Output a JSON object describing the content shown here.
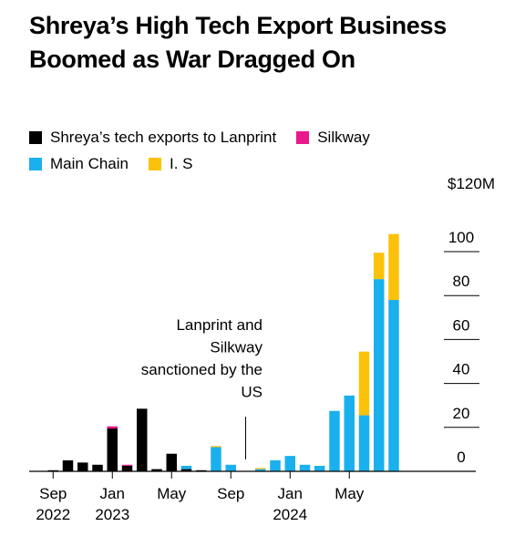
{
  "chart_data": {
    "type": "bar",
    "stacked": true,
    "title": "Shreya’s High Tech Export Business Boomed as War Dragged On",
    "y_unit_top_label": "$120M",
    "ylim": [
      0,
      110
    ],
    "yticks": [
      0,
      20,
      40,
      60,
      80,
      100
    ],
    "ytick_labels": [
      "0",
      "20",
      "40",
      "60",
      "80",
      "100"
    ],
    "y_axis_side": "right",
    "grid": true,
    "legend": {
      "placement": "top-left"
    },
    "xtick_labels": [
      {
        "line1": "Sep",
        "line2": "2022",
        "at_index": 0
      },
      {
        "line1": "Jan",
        "line2": "2023",
        "at_index": 4
      },
      {
        "line1": "May",
        "line2": "",
        "at_index": 8
      },
      {
        "line1": "Sep",
        "line2": "",
        "at_index": 12
      },
      {
        "line1": "Jan",
        "line2": "2024",
        "at_index": 16
      },
      {
        "line1": "May",
        "line2": "",
        "at_index": 20
      }
    ],
    "categories": [
      "Sep 2022",
      "Oct 2022",
      "Nov 2022",
      "Dec 2022",
      "Jan 2023",
      "Feb 2023",
      "Mar 2023",
      "Apr 2023",
      "May 2023",
      "Jun 2023",
      "Jul 2023",
      "Aug 2023",
      "Sep 2023",
      "Oct 2023",
      "Nov 2023",
      "Dec 2023",
      "Jan 2024",
      "Feb 2024",
      "Mar 2024",
      "Apr 2024",
      "May 2024",
      "Jun 2024",
      "Jul 2024",
      "Aug 2024"
    ],
    "series": [
      {
        "name": "Shreya’s tech exports to Lanprint",
        "color": "#000000",
        "values": [
          0.5,
          5,
          4,
          3,
          19.5,
          2.5,
          28.5,
          1,
          8,
          1,
          0.5,
          0,
          0,
          0,
          0,
          0,
          0,
          0,
          0,
          0,
          0,
          0,
          0,
          0
        ]
      },
      {
        "name": "Silkway",
        "color": "#e8198b",
        "values": [
          0,
          0,
          0,
          0,
          1,
          0.5,
          0,
          0,
          0,
          0,
          0,
          0,
          0,
          0,
          0,
          0,
          0,
          0,
          0,
          0,
          0,
          0,
          0,
          0
        ]
      },
      {
        "name": "Main Chain",
        "color": "#1ab0ed",
        "values": [
          0,
          0,
          0,
          0,
          0,
          0,
          0,
          0,
          0,
          1.5,
          0,
          11,
          3,
          0,
          1,
          5,
          7,
          3,
          2.5,
          27.5,
          34.5,
          25.5,
          87.5,
          78
        ]
      },
      {
        "name": "I. S",
        "color": "#fcc20a",
        "values": [
          0,
          0,
          0,
          0,
          0,
          0,
          0,
          0,
          0,
          0,
          0,
          0.5,
          0,
          0,
          0.5,
          0,
          0,
          0,
          0,
          0,
          0,
          29,
          12,
          30
        ]
      }
    ],
    "annotation": {
      "lines": [
        "Lanprint and",
        "Silkway",
        "sanctioned by the",
        "US"
      ],
      "at_index": 13
    }
  }
}
